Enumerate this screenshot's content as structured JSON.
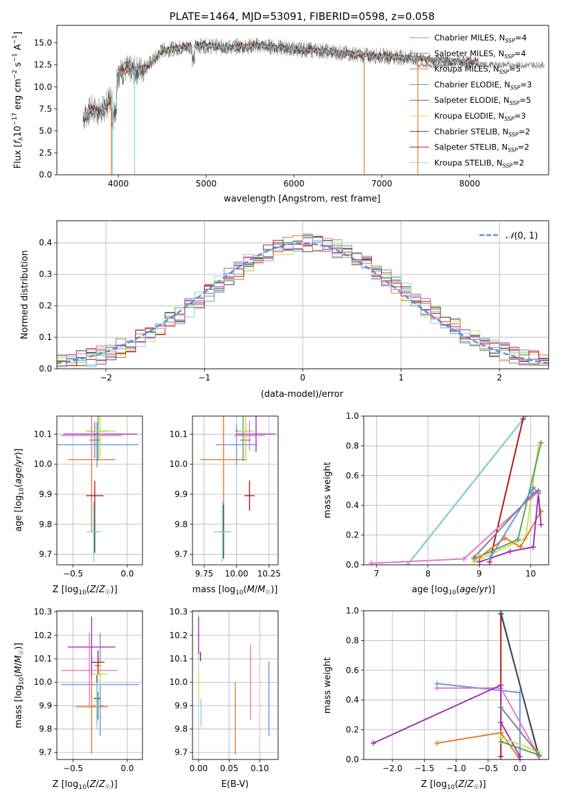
{
  "figure": {
    "title": "PLATE=1464, MJD=53091, FIBERID=0598, z=0.058"
  },
  "colors": {
    "Chabrier MILES": "#6495ed",
    "Salpeter MILES": "#808080",
    "Kroupa MILES": "#e07b24",
    "Chabrier ELODIE": "#5aa05a",
    "Salpeter ELODIE": "#a030b0",
    "Kroupa ELODIE": "#c8e04a",
    "Chabrier STELIB": "#404040",
    "Salpeter STELIB": "#b01818",
    "Kroupa STELIB": "#7fd3dd",
    "pink": "#e377c2",
    "gaussian": "#5b8ed6"
  },
  "chart_data": [
    {
      "id": "spectrum",
      "type": "line",
      "title": "PLATE=1464, MJD=53091, FIBERID=0598, z=0.058",
      "xlabel": "wavelength [Angstrom, rest frame]",
      "ylabel": "Flux [f_λ 10^-17 erg cm^-2 s^-1 A^-1]",
      "xlim": [
        3300,
        8900
      ],
      "ylim": [
        0,
        17
      ],
      "xticks": [
        4000,
        5000,
        6000,
        7000,
        8000
      ],
      "yticks": [
        0.0,
        2.5,
        5.0,
        7.5,
        10.0,
        12.5,
        15.0
      ],
      "grid": false,
      "legend_position": "upper right",
      "continuum": {
        "x": [
          3600,
          3700,
          3800,
          3900,
          4000,
          4100,
          4200,
          4300,
          4400,
          4500,
          4600,
          4800,
          5000,
          5200,
          5400,
          5600,
          5800,
          6000,
          6200,
          6400,
          6600,
          6800,
          7000,
          7200,
          7400
        ],
        "y": [
          6.5,
          7.5,
          7.0,
          8.5,
          11.5,
          12.0,
          11.8,
          12.2,
          13.0,
          14.2,
          14.3,
          14.6,
          14.7,
          14.5,
          14.6,
          14.7,
          14.5,
          14.3,
          14.2,
          14.0,
          13.8,
          13.6,
          13.5,
          13.4,
          13.2
        ]
      },
      "series": [
        {
          "name": "Chabrier MILES, N_SSP=4",
          "label_main": "Chabrier MILES, N",
          "label_sub": "SSP",
          "label_end": "=4",
          "color_key": "Chabrier MILES"
        },
        {
          "name": "Salpeter MILES, N_SSP=4",
          "label_main": "Salpeter MILES, N",
          "label_sub": "SSP",
          "label_end": "=4",
          "color_key": "Salpeter MILES"
        },
        {
          "name": "Kroupa MILES, N_SSP=5",
          "label_main": "Kroupa MILES, N",
          "label_sub": "SSP",
          "label_end": "=5",
          "color_key": "Kroupa MILES"
        },
        {
          "name": "Chabrier ELODIE, N_SSP=3",
          "label_main": "Chabrier ELODIE, N",
          "label_sub": "SSP",
          "label_end": "=3",
          "color_key": "Chabrier ELODIE"
        },
        {
          "name": "Salpeter ELODIE, N_SSP=5",
          "label_main": "Salpeter ELODIE, N",
          "label_sub": "SSP",
          "label_end": "=5",
          "color_key": "Salpeter ELODIE"
        },
        {
          "name": "Kroupa ELODIE, N_SSP=3",
          "label_main": "Kroupa ELODIE, N",
          "label_sub": "SSP",
          "label_end": "=3",
          "color_key": "Kroupa ELODIE"
        },
        {
          "name": "Chabrier STELIB, N_SSP=2",
          "label_main": "Chabrier STELIB, N",
          "label_sub": "SSP",
          "label_end": "=2",
          "color_key": "Chabrier STELIB"
        },
        {
          "name": "Salpeter STELIB, N_SSP=2",
          "label_main": "Salpeter STELIB, N",
          "label_sub": "SSP",
          "label_end": "=2",
          "color_key": "Salpeter STELIB"
        },
        {
          "name": "Kroupa STELIB, N_SSP=2",
          "label_main": "Kroupa STELIB, N",
          "label_sub": "SSP",
          "label_end": "=2",
          "color_key": "Kroupa STELIB"
        }
      ],
      "drops": [
        {
          "x": 3920,
          "color_key": "Kroupa MILES"
        },
        {
          "x": 3935,
          "color_key": "Kroupa STELIB"
        },
        {
          "x": 4185,
          "color_key": "Kroupa STELIB"
        },
        {
          "x": 6800,
          "color_key": "Kroupa MILES"
        },
        {
          "x": 7410,
          "color_key": "Kroupa MILES"
        }
      ]
    },
    {
      "id": "residuals",
      "type": "histogram",
      "xlabel": "(data-model)/error",
      "ylabel": "Normed distribution",
      "xlim": [
        -2.5,
        2.5
      ],
      "ylim": [
        0,
        0.47
      ],
      "xticks": [
        -2,
        -1,
        0,
        1,
        2
      ],
      "yticks": [
        0.0,
        0.1,
        0.2,
        0.3,
        0.4
      ],
      "grid": true,
      "legend_position": "upper right",
      "bin_width": 0.1,
      "bin_start": -2.5,
      "gaussian_label": "N(0, 1)",
      "gaussian": {
        "mean": 0,
        "sigma": 1
      }
    },
    {
      "id": "age_vs_Z",
      "type": "scatter",
      "xlabel": "Z [log10(Z/Z☉)]",
      "ylabel": "age  [log10(age/yr)]",
      "xlim": [
        -0.65,
        0.14
      ],
      "ylim": [
        9.665,
        10.16
      ],
      "xticks": [
        -0.5,
        0.0
      ],
      "yticks": [
        9.7,
        9.8,
        9.9,
        10.0,
        10.1
      ],
      "grid": true,
      "points": [
        {
          "series": "Chabrier MILES",
          "x": -0.28,
          "y": 10.065,
          "xerr": 0.38,
          "yerr": 0.075
        },
        {
          "series": "Salpeter MILES",
          "x": -0.3,
          "y": 10.08,
          "xerr": 0.05,
          "yerr": 0.06
        },
        {
          "series": "Kroupa MILES",
          "x": -0.33,
          "y": 10.015,
          "xerr": 0.22,
          "yerr": 0.24
        },
        {
          "series": "Chabrier ELODIE",
          "x": -0.27,
          "y": 10.11,
          "xerr": 0.1,
          "yerr": 0.1
        },
        {
          "series": "Salpeter ELODIE",
          "x": -0.25,
          "y": 10.1,
          "xerr": 0.34,
          "yerr": 0.06
        },
        {
          "series": "Kroupa ELODIE",
          "x": -0.25,
          "y": 10.11,
          "xerr": 0.14,
          "yerr": 0.1
        },
        {
          "series": "Chabrier STELIB",
          "x": -0.3,
          "y": 9.775,
          "xerr": 0.03,
          "yerr": 0.07
        },
        {
          "series": "Salpeter STELIB",
          "x": -0.3,
          "y": 9.895,
          "xerr": 0.08,
          "yerr": 0.05
        },
        {
          "series": "Kroupa STELIB",
          "x": -0.31,
          "y": 9.775,
          "xerr": 0.07,
          "yerr": 0.1
        },
        {
          "series": "pink",
          "x": -0.33,
          "y": 10.095,
          "xerr": 0.28,
          "yerr": 0.09
        }
      ]
    },
    {
      "id": "age_vs_mass",
      "type": "scatter",
      "xlabel": "mass [log10(M/M☉)]",
      "ylabel": "",
      "xlim": [
        9.66,
        10.32
      ],
      "ylim": [
        9.665,
        10.16
      ],
      "xticks": [
        9.75,
        10.0,
        10.25
      ],
      "yticks": [
        9.7,
        9.8,
        9.9,
        10.0,
        10.1
      ],
      "grid": true,
      "points": [
        {
          "series": "Chabrier MILES",
          "x": 10.0,
          "y": 10.065,
          "xerr": 0.16,
          "yerr": 0.07
        },
        {
          "series": "Salpeter MILES",
          "x": 10.07,
          "y": 10.08,
          "xerr": 0.04,
          "yerr": 0.06
        },
        {
          "series": "Kroupa MILES",
          "x": 9.9,
          "y": 10.015,
          "xerr": 0.18,
          "yerr": 0.24
        },
        {
          "series": "Chabrier ELODIE",
          "x": 10.05,
          "y": 10.11,
          "xerr": 0.06,
          "yerr": 0.1
        },
        {
          "series": "Salpeter ELODIE",
          "x": 10.15,
          "y": 10.1,
          "xerr": 0.15,
          "yerr": 0.06
        },
        {
          "series": "Kroupa ELODIE",
          "x": 10.07,
          "y": 10.11,
          "xerr": 0.06,
          "yerr": 0.1
        },
        {
          "series": "Chabrier STELIB",
          "x": 9.9,
          "y": 9.775,
          "xerr": 0.03,
          "yerr": 0.09
        },
        {
          "series": "Salpeter STELIB",
          "x": 10.1,
          "y": 9.895,
          "xerr": 0.04,
          "yerr": 0.05
        },
        {
          "series": "Kroupa STELIB",
          "x": 9.89,
          "y": 9.775,
          "xerr": 0.07,
          "yerr": 0.1
        },
        {
          "series": "pink",
          "x": 10.1,
          "y": 10.095,
          "xerr": 0.12,
          "yerr": 0.05
        }
      ]
    },
    {
      "id": "weight_vs_age",
      "type": "line",
      "xlabel": "age  [log10(age/yr)]",
      "ylabel": "mass weight",
      "xlim": [
        6.75,
        10.35
      ],
      "ylim": [
        0,
        1
      ],
      "xticks": [
        7,
        8,
        9,
        10
      ],
      "yticks": [
        0.0,
        0.2,
        0.4,
        0.6,
        0.8,
        1.0
      ],
      "grid": true,
      "series": [
        {
          "series": "Chabrier STELIB",
          "x": [
            7.6,
            9.9
          ],
          "y": [
            0.0,
            1.0
          ]
        },
        {
          "series": "Kroupa STELIB",
          "x": [
            7.6,
            9.9
          ],
          "y": [
            0.0,
            1.0
          ]
        },
        {
          "series": "Salpeter STELIB",
          "x": [
            9.2,
            9.85
          ],
          "y": [
            0.02,
            0.98
          ]
        },
        {
          "series": "Kroupa ELODIE",
          "x": [
            8.9,
            9.9,
            10.15
          ],
          "y": [
            0.02,
            0.18,
            0.8
          ]
        },
        {
          "series": "Chabrier ELODIE",
          "x": [
            8.9,
            9.75,
            10.2
          ],
          "y": [
            0.04,
            0.17,
            0.82
          ]
        },
        {
          "series": "Kroupa MILES",
          "x": [
            9.0,
            9.5,
            9.8,
            10.2
          ],
          "y": [
            0.05,
            0.18,
            0.12,
            0.36
          ]
        },
        {
          "series": "Salpeter ELODIE",
          "x": [
            9.0,
            9.6,
            10.05,
            10.15,
            10.2
          ],
          "y": [
            0.02,
            0.09,
            0.12,
            0.48,
            0.27
          ]
        },
        {
          "series": "Chabrier MILES",
          "x": [
            9.2,
            10.05,
            10.15
          ],
          "y": [
            0.04,
            0.52,
            0.48
          ]
        },
        {
          "series": "pink",
          "x": [
            6.9,
            8.7,
            10.0,
            10.15
          ],
          "y": [
            0.01,
            0.04,
            0.45,
            0.49
          ]
        },
        {
          "series": "Salpeter MILES",
          "x": [
            8.9,
            10.05,
            10.15
          ],
          "y": [
            0.05,
            0.48,
            0.5
          ]
        }
      ]
    },
    {
      "id": "mass_vs_Z",
      "type": "scatter",
      "xlabel": "Z [log10(Z/Z☉)]",
      "ylabel": "mass [log10(M/M☉)]",
      "xlim": [
        -0.65,
        0.14
      ],
      "ylim": [
        9.67,
        10.305
      ],
      "xticks": [
        -0.5,
        0.0
      ],
      "yticks": [
        9.7,
        9.8,
        9.9,
        10.0,
        10.1,
        10.2,
        10.3
      ],
      "grid": true,
      "points": [
        {
          "series": "Chabrier MILES",
          "x": -0.25,
          "y": 9.99,
          "xerr": 0.36,
          "yerr": 0.22
        },
        {
          "series": "Salpeter MILES",
          "x": -0.27,
          "y": 9.9,
          "xerr": 0.05,
          "yerr": 0.06
        },
        {
          "series": "Kroupa MILES",
          "x": -0.33,
          "y": 9.895,
          "xerr": 0.15,
          "yerr": 0.2
        },
        {
          "series": "Chabrier ELODIE",
          "x": -0.27,
          "y": 10.07,
          "xerr": 0.03,
          "yerr": 0.04
        },
        {
          "series": "Salpeter ELODIE",
          "x": -0.33,
          "y": 10.15,
          "xerr": 0.22,
          "yerr": 0.13
        },
        {
          "series": "Kroupa ELODIE",
          "x": -0.25,
          "y": 10.035,
          "xerr": 0.07,
          "yerr": 0.05
        },
        {
          "series": "Chabrier STELIB",
          "x": -0.28,
          "y": 9.93,
          "xerr": 0.03,
          "yerr": 0.1
        },
        {
          "series": "Salpeter STELIB",
          "x": -0.27,
          "y": 10.085,
          "xerr": 0.06,
          "yerr": 0.05
        },
        {
          "series": "Kroupa STELIB",
          "x": -0.28,
          "y": 9.9,
          "xerr": 0.03,
          "yerr": 0.1
        },
        {
          "series": "pink",
          "x": -0.35,
          "y": 10.05,
          "xerr": 0.26,
          "yerr": 0.16
        }
      ]
    },
    {
      "id": "mass_vs_ebv",
      "type": "scatter",
      "xlabel": "E(B-V)",
      "ylabel": "",
      "xlim": [
        -0.01,
        0.13
      ],
      "ylim": [
        9.67,
        10.305
      ],
      "xticks": [
        0.0,
        0.05,
        0.1
      ],
      "yticks": [
        9.7,
        9.8,
        9.9,
        10.0,
        10.1,
        10.2,
        10.3
      ],
      "grid": true,
      "points": [
        {
          "series": "Chabrier MILES",
          "x": 0.115,
          "y": 9.93,
          "xerr": 0.0,
          "yerr": 0.16
        },
        {
          "series": "Kroupa MILES",
          "x": 0.06,
          "y": 9.845,
          "xerr": 0.0,
          "yerr": 0.155
        },
        {
          "series": "pink",
          "x": 0.085,
          "y": 10.0,
          "xerr": 0.0,
          "yerr": 0.16
        },
        {
          "series": "Salpeter ELODIE",
          "x": 0.0,
          "y": 10.2,
          "xerr": 0.0,
          "yerr": 0.08
        },
        {
          "series": "Kroupa ELODIE",
          "x": 0.0,
          "y": 9.98,
          "xerr": 0.0,
          "yerr": 0.05
        },
        {
          "series": "Salpeter STELIB",
          "x": 0.003,
          "y": 10.11,
          "xerr": 0.0,
          "yerr": 0.02
        },
        {
          "series": "Kroupa STELIB",
          "x": 0.004,
          "y": 9.87,
          "xerr": 0.0,
          "yerr": 0.06
        }
      ]
    },
    {
      "id": "weight_vs_Z",
      "type": "line",
      "xlabel": "Z [log10(Z/Z☉)]",
      "ylabel": "mass weight",
      "xlim": [
        -2.45,
        0.45
      ],
      "ylim": [
        0,
        1
      ],
      "xticks": [
        -2.0,
        -1.5,
        -1.0,
        -0.5,
        0.0
      ],
      "yticks": [
        0.0,
        0.2,
        0.4,
        0.6,
        0.8,
        1.0
      ],
      "grid": true,
      "series": [
        {
          "series": "Salpeter STELIB",
          "x": [
            -0.3,
            -0.3
          ],
          "y": [
            0.02,
            0.98
          ]
        },
        {
          "series": "Kroupa STELIB",
          "x": [
            -0.3,
            0.3
          ],
          "y": [
            1.0,
            0.0
          ]
        },
        {
          "series": "Chabrier STELIB",
          "x": [
            -0.3,
            0.3
          ],
          "y": [
            0.98,
            0.02
          ]
        },
        {
          "series": "Chabrier MILES",
          "x": [
            -1.3,
            0.0,
            0.0
          ],
          "y": [
            0.51,
            0.45,
            0.02
          ]
        },
        {
          "series": "pink",
          "x": [
            -1.3,
            -0.3,
            0.3
          ],
          "y": [
            0.48,
            0.48,
            0.02
          ]
        },
        {
          "series": "Kroupa MILES",
          "x": [
            -1.3,
            -0.3,
            0.0
          ],
          "y": [
            0.11,
            0.18,
            0.0
          ]
        },
        {
          "series": "Salpeter ELODIE",
          "x": [
            -2.3,
            -0.3,
            -0.3,
            0.0
          ],
          "y": [
            0.11,
            0.5,
            0.25,
            0.02
          ]
        },
        {
          "series": "Kroupa ELODIE",
          "x": [
            -0.3,
            0.3
          ],
          "y": [
            0.15,
            0.05
          ]
        },
        {
          "series": "Chabrier ELODIE",
          "x": [
            -0.3,
            0.3
          ],
          "y": [
            0.12,
            0.03
          ]
        },
        {
          "series": "Salpeter MILES",
          "x": [
            -0.3,
            0.3
          ],
          "y": [
            0.35,
            0.03
          ]
        }
      ]
    }
  ]
}
